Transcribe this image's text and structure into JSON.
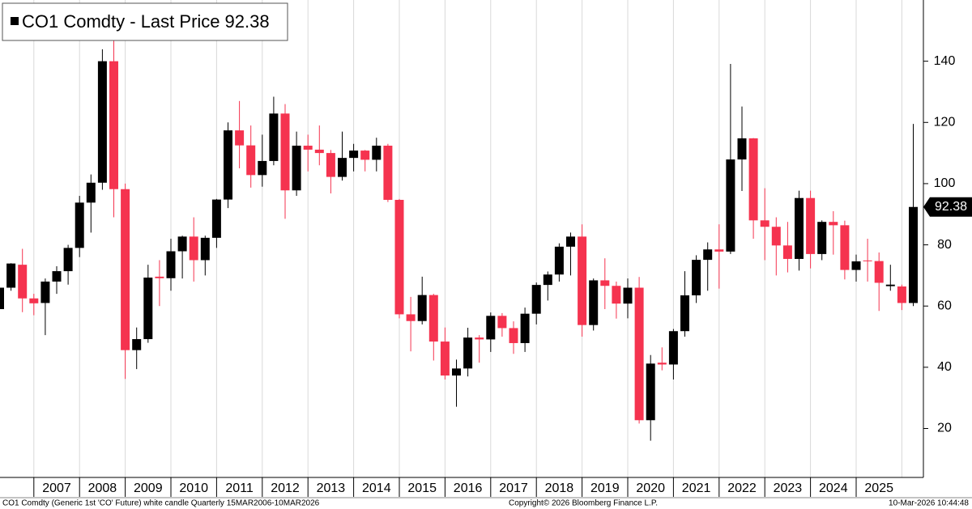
{
  "chart_data": {
    "type": "candlestick",
    "series": [
      {
        "name": "CO1 Comdty - Last Price",
        "up_color": "#000000",
        "down_color": "#f5334f",
        "open": [
          59,
          66,
          73.5,
          62.5,
          61,
          68,
          71.4,
          79,
          93.8,
          100.3,
          140,
          98.2,
          45.6,
          49.2,
          69.6,
          69.1,
          77.9,
          82.7,
          75,
          82.3,
          94.8,
          117.4,
          112.5,
          102.8,
          107.4,
          122.9,
          97.8,
          112.4,
          111.1,
          110,
          102.2,
          108.4,
          110.8,
          107.8,
          112.4,
          94.7,
          57.3,
          55.1,
          63.6,
          48.4,
          37.3,
          39.6,
          49.7,
          49.1,
          56.8,
          52.8,
          47.9,
          57.5,
          66.9,
          70.3,
          79.4,
          82.7,
          53.8,
          68.4,
          66.6,
          60.8,
          66,
          22.7,
          41.5,
          40.9,
          51.8,
          63.5,
          75.1,
          78.5,
          77.8,
          107.9,
          114.8,
          88,
          85.9,
          79.8,
          75.4,
          95.3,
          77,
          87.5,
          86.4,
          71.8,
          74.9,
          74.7,
          66.5,
          66.4,
          61
        ],
        "high": [
          66.5,
          74,
          78.7,
          64,
          69,
          73,
          80,
          96,
          103,
          143.9,
          147.5,
          100,
          53,
          73.5,
          75,
          82,
          83,
          89,
          83,
          95,
          120,
          127,
          119,
          116,
          128.4,
          126,
          117,
          116,
          119,
          111,
          117,
          113,
          111,
          115,
          113,
          95,
          63,
          69.6,
          64,
          53,
          42.5,
          52.9,
          50.5,
          57.9,
          57.7,
          55,
          59.5,
          67.7,
          71.3,
          80.5,
          84,
          86.7,
          69,
          75.6,
          68,
          69,
          69.5,
          44,
          46.5,
          52.5,
          71.4,
          76.6,
          80.8,
          86.7,
          139.1,
          125.2,
          114.9,
          98.5,
          89,
          87.5,
          97.7,
          97.7,
          88,
          91,
          87.9,
          76.8,
          82,
          77.5,
          73.5,
          67,
          119.5
        ],
        "low": [
          58,
          65,
          58,
          57,
          50.5,
          64,
          67,
          76,
          84,
          98,
          89,
          36.2,
          39.4,
          48,
          60,
          65,
          69,
          68,
          70,
          79,
          92,
          105,
          98.7,
          99,
          106,
          88.5,
          96,
          104,
          106,
          96.8,
          101,
          104,
          104,
          104,
          94,
          56,
          45.2,
          54,
          42.2,
          36,
          27.1,
          37,
          41.5,
          45,
          50,
          44.4,
          45,
          54,
          61.8,
          68,
          70,
          50,
          52,
          59,
          55.9,
          56,
          21.6,
          16,
          39,
          36,
          50,
          61,
          65,
          65.7,
          77,
          97.6,
          82,
          75,
          70,
          71,
          71.6,
          72.3,
          75,
          76.8,
          68.7,
          68,
          68,
          58.4,
          65,
          58.7,
          60
        ],
        "close": [
          66,
          73.9,
          62.5,
          60.9,
          68,
          71.4,
          79,
          93.8,
          100.3,
          140,
          98.2,
          45.6,
          49.2,
          69.3,
          69.1,
          77.9,
          82.7,
          75,
          82.3,
          94.8,
          117.4,
          112.5,
          102.8,
          107.4,
          122.9,
          97.8,
          112.4,
          111.1,
          110,
          102.2,
          108.4,
          110.8,
          107.8,
          112.4,
          94.7,
          57.3,
          55.1,
          63.6,
          48.4,
          37.3,
          39.6,
          49.7,
          49.1,
          56.8,
          52.8,
          47.9,
          57.5,
          66.9,
          70.3,
          79.4,
          82.7,
          53.8,
          68.4,
          66.6,
          60.8,
          66,
          22.7,
          41.2,
          40.9,
          51.8,
          63.5,
          75.1,
          78.5,
          77.8,
          107.9,
          114.8,
          88,
          85.9,
          79.8,
          75.4,
          95.3,
          77,
          87.5,
          86.4,
          71.8,
          74.6,
          74.7,
          67.6,
          67,
          61,
          92.38
        ]
      }
    ],
    "xticks": [
      2007,
      2008,
      2009,
      2010,
      2011,
      2012,
      2013,
      2014,
      2015,
      2016,
      2017,
      2018,
      2019,
      2020,
      2021,
      2022,
      2023,
      2024,
      2025
    ],
    "ylim": [
      4,
      160
    ],
    "yticks": [
      20,
      40,
      60,
      80,
      100,
      120,
      140
    ],
    "grid": true,
    "footer_left": "CO1 Comdty (Generic 1st 'CO' Future) white candle Quarterly 15MAR2006-10MAR2026",
    "footer_center": "Copyright© 2026 Bloomberg Finance L.P.",
    "footer_right": "10-Mar-2026 10:44:48"
  }
}
